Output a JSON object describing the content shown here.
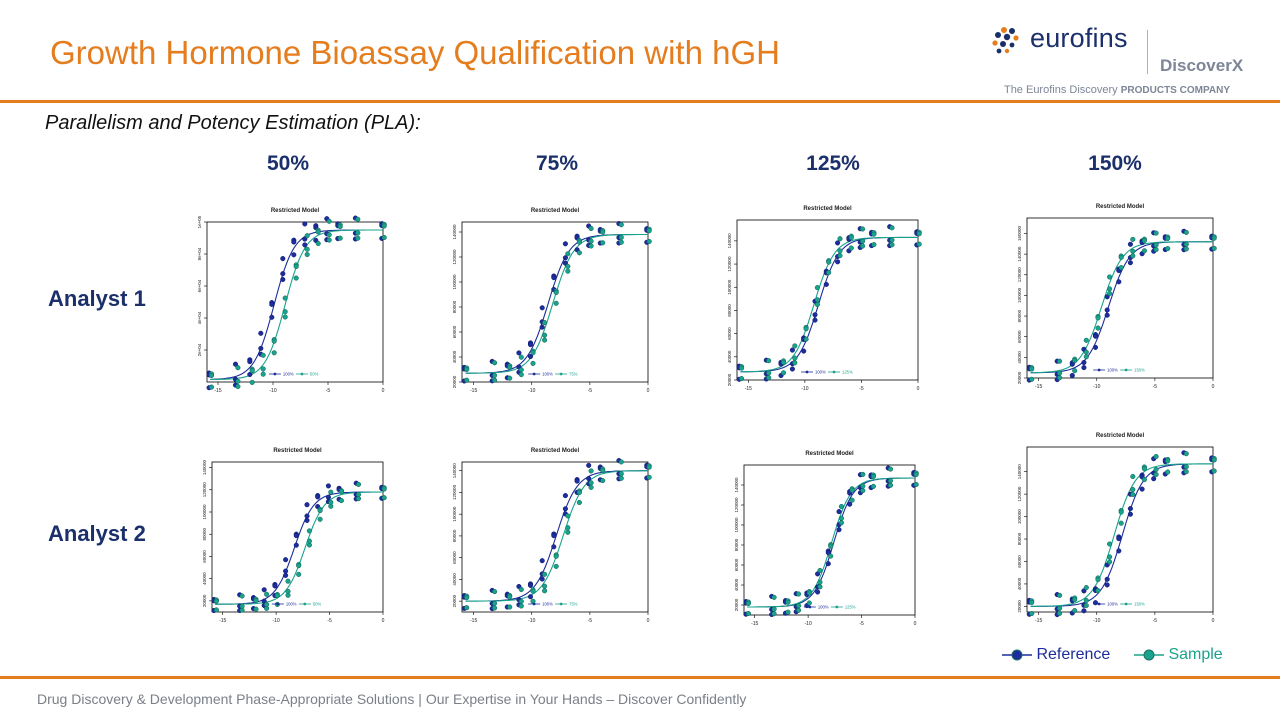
{
  "header": {
    "title": "Growth Hormone Bioassay Qualification with hGH",
    "logo_word": "eurofins",
    "logo_sub": "DiscoverX",
    "logo_tagline_a": "The Eurofins Discovery ",
    "logo_tagline_b": "PRODUCTS COMPANY"
  },
  "subtitle": "Parallelism and Potency Estimation (PLA):",
  "columns": [
    "50%",
    "75%",
    "125%",
    "150%"
  ],
  "rows": [
    "Analyst 1",
    "Analyst 2"
  ],
  "legend": {
    "reference": "Reference",
    "sample": "Sample",
    "reference_color": "#1d2d9b",
    "sample_color": "#1aa38c"
  },
  "footer": "Drug Discovery & Development Phase-Appropriate Solutions | Our Expertise in Your Hands – Discover Confidently",
  "chart_data": [
    {
      "type": "scatter",
      "title": "Restricted Model",
      "analyst": "Analyst 1",
      "column": "50%",
      "xlim": [
        -16,
        0
      ],
      "ylim": [
        0,
        100000
      ],
      "xticks": [
        -15,
        -10,
        -5,
        0
      ],
      "yticks": [
        20000,
        40000,
        60000,
        80000,
        100000
      ],
      "ytick_labels": [
        "2e+04",
        "4e+04",
        "6e+04",
        "8e+04",
        "1e+05"
      ],
      "legend_labels": [
        "100%",
        "50%"
      ],
      "ref_ec50": -9.9,
      "sample_ec50": -8.9,
      "bottom": 1500,
      "top": 95000,
      "x": [
        -15.7,
        -13.3,
        -12,
        -11,
        -10,
        -9,
        -8,
        -7,
        -6,
        -5,
        -4,
        -2.4,
        0
      ]
    },
    {
      "type": "scatter",
      "title": "Restricted Model",
      "analyst": "Analyst 1",
      "column": "75%",
      "xlim": [
        -16,
        0
      ],
      "ylim": [
        20000,
        148000
      ],
      "xticks": [
        -15,
        -10,
        -5,
        0
      ],
      "yticks": [
        20000,
        40000,
        60000,
        80000,
        100000,
        120000,
        140000
      ],
      "ytick_labels": [
        "20000",
        "40000",
        "60000",
        "80000",
        "100000",
        "120000",
        "140000"
      ],
      "legend_labels": [
        "100%",
        "75%"
      ],
      "ref_ec50": -8.6,
      "sample_ec50": -8.2,
      "bottom": 27000,
      "top": 138000,
      "x": [
        -15.7,
        -13.3,
        -12,
        -11,
        -10,
        -9,
        -8,
        -7,
        -6,
        -5,
        -4,
        -2.4,
        0
      ]
    },
    {
      "type": "scatter",
      "title": "Restricted Model",
      "analyst": "Analyst 1",
      "column": "125%",
      "xlim": [
        -16,
        0
      ],
      "ylim": [
        20000,
        158000
      ],
      "xticks": [
        -15,
        -10,
        -5,
        0
      ],
      "yticks": [
        20000,
        40000,
        60000,
        80000,
        100000,
        120000,
        140000
      ],
      "ytick_labels": [
        "20000",
        "40000",
        "60000",
        "80000",
        "100000",
        "120000",
        "140000"
      ],
      "legend_labels": [
        "100%",
        "125%"
      ],
      "ref_ec50": -8.8,
      "sample_ec50": -9.2,
      "bottom": 27000,
      "top": 143000,
      "x": [
        -15.7,
        -13.3,
        -12,
        -11,
        -10,
        -9,
        -8,
        -7,
        -6,
        -5,
        -4,
        -2.4,
        0
      ]
    },
    {
      "type": "scatter",
      "title": "Restricted Model",
      "analyst": "Analyst 1",
      "column": "150%",
      "xlim": [
        -16,
        0
      ],
      "ylim": [
        20000,
        175000
      ],
      "xticks": [
        -15,
        -10,
        -5,
        0
      ],
      "yticks": [
        20000,
        40000,
        60000,
        80000,
        100000,
        120000,
        140000,
        160000
      ],
      "ytick_labels": [
        "20000",
        "40000",
        "60000",
        "80000",
        "100000",
        "120000",
        "140000",
        "160000"
      ],
      "legend_labels": [
        "100%",
        "150%"
      ],
      "ref_ec50": -9.0,
      "sample_ec50": -9.6,
      "bottom": 25000,
      "top": 152000,
      "x": [
        -15.7,
        -13.3,
        -12,
        -11,
        -10,
        -9,
        -8,
        -7,
        -6,
        -5,
        -4,
        -2.4,
        0
      ]
    },
    {
      "type": "scatter",
      "title": "Restricted Model",
      "analyst": "Analyst 2",
      "column": "50%",
      "xlim": [
        -16,
        0
      ],
      "ylim": [
        10000,
        145000
      ],
      "xticks": [
        -15,
        -10,
        -5,
        0
      ],
      "yticks": [
        20000,
        40000,
        60000,
        80000,
        100000,
        120000,
        140000
      ],
      "ytick_labels": [
        "20000",
        "40000",
        "60000",
        "80000",
        "100000",
        "120000",
        "140000"
      ],
      "legend_labels": [
        "100%",
        "50%"
      ],
      "ref_ec50": -8.3,
      "sample_ec50": -7.3,
      "bottom": 17000,
      "top": 118000,
      "x": [
        -15.7,
        -13.3,
        -12,
        -11,
        -10,
        -9,
        -8,
        -7,
        -6,
        -5,
        -4,
        -2.4,
        0
      ]
    },
    {
      "type": "scatter",
      "title": "Restricted Model",
      "analyst": "Analyst 2",
      "column": "75%",
      "xlim": [
        -16,
        0
      ],
      "ylim": [
        10000,
        148000
      ],
      "xticks": [
        -15,
        -10,
        -5,
        0
      ],
      "yticks": [
        20000,
        40000,
        60000,
        80000,
        100000,
        120000,
        140000
      ],
      "ytick_labels": [
        "20000",
        "40000",
        "60000",
        "80000",
        "100000",
        "120000",
        "140000"
      ],
      "legend_labels": [
        "100%",
        "75%"
      ],
      "ref_ec50": -7.9,
      "sample_ec50": -7.3,
      "bottom": 20000,
      "top": 140000,
      "x": [
        -15.7,
        -13.3,
        -12,
        -11,
        -10,
        -9,
        -8,
        -7,
        -6,
        -5,
        -4,
        -2.4,
        0
      ]
    },
    {
      "type": "scatter",
      "title": "Restricted Model",
      "analyst": "Analyst 2",
      "column": "125%",
      "xlim": [
        -16,
        0
      ],
      "ylim": [
        10000,
        160000
      ],
      "xticks": [
        -15,
        -10,
        -5,
        0
      ],
      "yticks": [
        20000,
        40000,
        60000,
        80000,
        100000,
        120000,
        140000
      ],
      "ytick_labels": [
        "20000",
        "40000",
        "60000",
        "80000",
        "100000",
        "120000",
        "140000"
      ],
      "legend_labels": [
        "100%",
        "125%"
      ],
      "ref_ec50": -7.6,
      "sample_ec50": -7.8,
      "bottom": 18000,
      "top": 147000,
      "x": [
        -15.7,
        -13.3,
        -12,
        -11,
        -10,
        -9,
        -8,
        -7,
        -6,
        -5,
        -4,
        -2.4,
        0
      ]
    },
    {
      "type": "scatter",
      "title": "Restricted Model",
      "analyst": "Analyst 2",
      "column": "150%",
      "xlim": [
        -16,
        0
      ],
      "ylim": [
        15000,
        162000
      ],
      "xticks": [
        -15,
        -10,
        -5,
        0
      ],
      "yticks": [
        20000,
        40000,
        60000,
        80000,
        100000,
        120000,
        140000
      ],
      "ytick_labels": [
        "20000",
        "40000",
        "60000",
        "80000",
        "100000",
        "120000",
        "140000"
      ],
      "legend_labels": [
        "100%",
        "150%"
      ],
      "ref_ec50": -7.8,
      "sample_ec50": -8.5,
      "bottom": 20000,
      "top": 147000,
      "x": [
        -15.7,
        -13.3,
        -12,
        -11,
        -10,
        -9,
        -8,
        -7,
        -6,
        -5,
        -4,
        -2.4,
        0
      ]
    }
  ]
}
